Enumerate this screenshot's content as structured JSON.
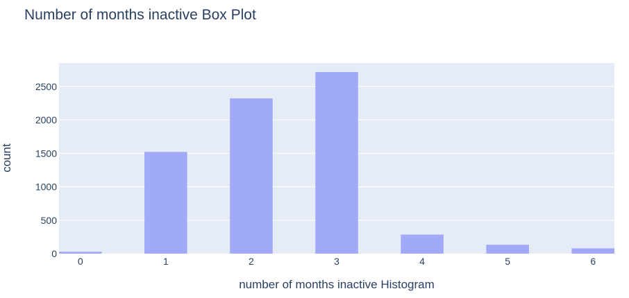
{
  "chart_data": {
    "type": "bar",
    "title": "Number of months inactive Box Plot",
    "xlabel": "number of months inactive Histogram",
    "ylabel": "count",
    "categories": [
      "0",
      "1",
      "2",
      "3",
      "4",
      "5",
      "6"
    ],
    "x": [
      0,
      1,
      2,
      3,
      4,
      5,
      6
    ],
    "values": [
      29,
      1521,
      2323,
      2716,
      285,
      133,
      80
    ],
    "ylim": [
      0,
      2850
    ],
    "xlim": [
      -0.25,
      6.25
    ],
    "yticks": [
      0,
      500,
      1000,
      1500,
      2000,
      2500
    ],
    "bar_color": "#a1aaf7",
    "plot_bg": "#e5ecf6",
    "grid": true,
    "legend": "none"
  }
}
